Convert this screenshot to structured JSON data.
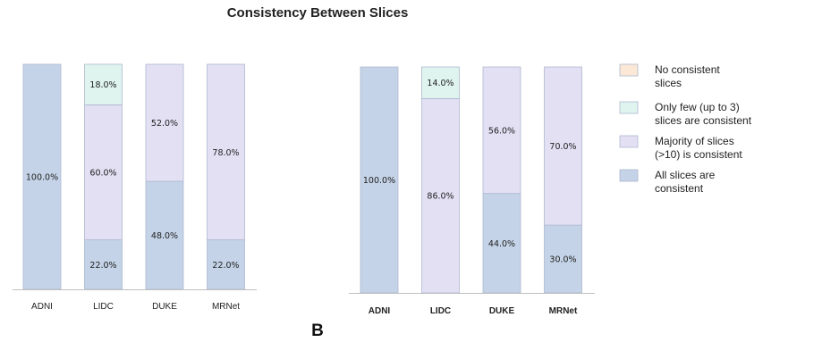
{
  "title": "Consistency Between Slices",
  "panel_label_b": "B",
  "legend": {
    "items": [
      {
        "key": "none",
        "lines": [
          "No consistent",
          "slices"
        ]
      },
      {
        "key": "few",
        "lines": [
          "Only few (up to 3)",
          "slices are consistent"
        ]
      },
      {
        "key": "majority",
        "lines": [
          "Majority of slices",
          "(>10) is consistent"
        ]
      },
      {
        "key": "all",
        "lines": [
          "All slices are",
          "consistent"
        ]
      }
    ]
  },
  "colors": {
    "none": "#fbe8d6",
    "few": "#dff4ee",
    "majority": "#e3e0f4",
    "all": "#c4d3e7",
    "bar_edge": "#aeb8cf"
  },
  "chart_data": [
    {
      "type": "bar",
      "stacked": true,
      "title": "",
      "categories": [
        "ADNI",
        "LIDC",
        "DUKE",
        "MRNet"
      ],
      "ylim": [
        0,
        100
      ],
      "series": [
        {
          "key": "all",
          "values": [
            100,
            22,
            48,
            22
          ]
        },
        {
          "key": "majority",
          "values": [
            0,
            60,
            52,
            78
          ]
        },
        {
          "key": "few",
          "values": [
            0,
            18,
            0,
            0
          ]
        },
        {
          "key": "none",
          "values": [
            0,
            0,
            0,
            0
          ]
        }
      ],
      "labels": [
        [
          "100.0%",
          "",
          "",
          ""
        ],
        [
          "22.0%",
          "60.0%",
          "18.0%",
          ""
        ],
        [
          "48.0%",
          "52.0%",
          "",
          ""
        ],
        [
          "22.0%",
          "78.0%",
          "",
          ""
        ]
      ],
      "tick_bold": false
    },
    {
      "type": "bar",
      "stacked": true,
      "title": "",
      "categories": [
        "ADNI",
        "LIDC",
        "DUKE",
        "MRNet"
      ],
      "ylim": [
        0,
        100
      ],
      "series": [
        {
          "key": "all",
          "values": [
            100,
            0,
            44,
            30
          ]
        },
        {
          "key": "majority",
          "values": [
            0,
            86,
            56,
            70
          ]
        },
        {
          "key": "few",
          "values": [
            0,
            14,
            0,
            0
          ]
        },
        {
          "key": "none",
          "values": [
            0,
            0,
            0,
            0
          ]
        }
      ],
      "labels": [
        [
          "100.0%",
          "",
          "",
          ""
        ],
        [
          "",
          "86.0%",
          "14.0%",
          ""
        ],
        [
          "44.0%",
          "56.0%",
          "",
          ""
        ],
        [
          "30.0%",
          "70.0%",
          "",
          ""
        ]
      ],
      "tick_bold": true
    }
  ]
}
